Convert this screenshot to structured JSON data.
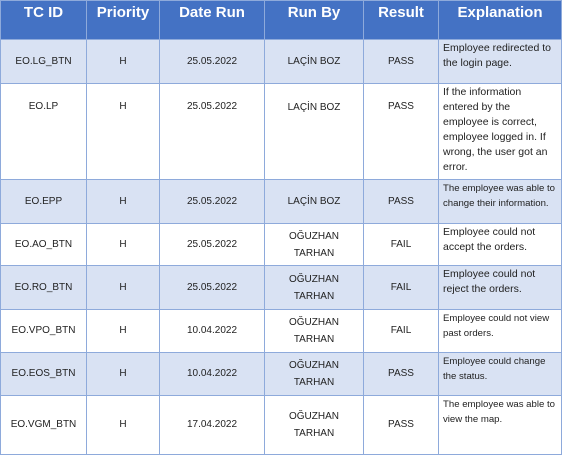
{
  "table": {
    "headers": {
      "tc_id": "TC ID",
      "priority": "Priority",
      "date_run": "Date Run",
      "run_by": "Run By",
      "result": "Result",
      "explanation": "Explanation"
    },
    "rows": [
      {
        "tc_id": "EO.LG_BTN",
        "priority": "H",
        "date_run": "25.05.2022",
        "run_by_line1": "LAÇİN BOZ",
        "run_by_line2": "",
        "result": "PASS",
        "explanation": "Employee redirected to the login page."
      },
      {
        "tc_id": "EO.LP",
        "priority": "H",
        "date_run": "25.05.2022",
        "run_by_line1": "LAÇİN BOZ",
        "run_by_line2": "",
        "result": "PASS",
        "explanation": "If the information entered by the employee is correct, employee logged in. If wrong, the user got an error."
      },
      {
        "tc_id": "EO.EPP",
        "priority": "H",
        "date_run": "25.05.2022",
        "run_by_line1": "LAÇİN BOZ",
        "run_by_line2": "",
        "result": "PASS",
        "explanation": "The employee was able to change their information."
      },
      {
        "tc_id": "EO.AO_BTN",
        "priority": "H",
        "date_run": "25.05.2022",
        "run_by_line1": "OĞUZHAN",
        "run_by_line2": "TARHAN",
        "result": "FAIL",
        "explanation": "Employee could not accept the orders."
      },
      {
        "tc_id": "EO.RO_BTN",
        "priority": "H",
        "date_run": "25.05.2022",
        "run_by_line1": "OĞUZHAN",
        "run_by_line2": "TARHAN",
        "result": "FAIL",
        "explanation": "Employee could not reject the orders."
      },
      {
        "tc_id": "EO.VPO_BTN",
        "priority": "H",
        "date_run": "10.04.2022",
        "run_by_line1": "OĞUZHAN",
        "run_by_line2": "TARHAN",
        "result": "FAIL",
        "explanation": "Employee could not view past orders."
      },
      {
        "tc_id": "EO.EOS_BTN",
        "priority": "H",
        "date_run": "10.04.2022",
        "run_by_line1": "OĞUZHAN",
        "run_by_line2": "TARHAN",
        "result": "PASS",
        "explanation": "Employee could change the status."
      },
      {
        "tc_id": "EO.VGM_BTN",
        "priority": "H",
        "date_run": "17.04.2022",
        "run_by_line1": "OĞUZHAN",
        "run_by_line2": "TARHAN",
        "result": "PASS",
        "explanation": "The employee was able to view the map."
      }
    ]
  },
  "colors": {
    "header_bg": "#4472c4",
    "band_bg": "#d9e2f3",
    "border": "#8eaadb"
  }
}
